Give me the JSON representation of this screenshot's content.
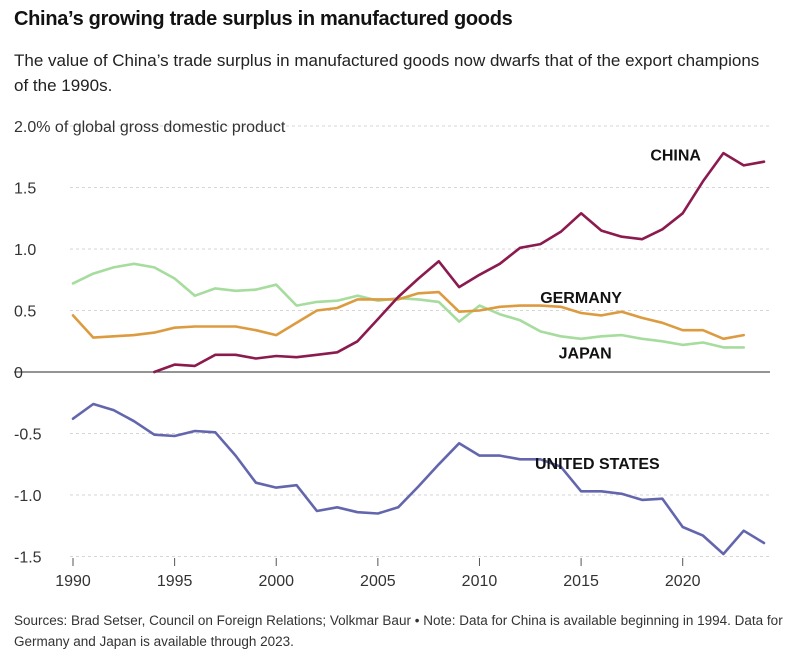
{
  "header": {
    "title": "China’s growing trade surplus in manufactured goods",
    "subtitle": "The value of China’s trade surplus in manufactured goods now dwarfs that of the export champions of the 1990s."
  },
  "footer": {
    "sources": "Sources: Brad Setser, Council on Foreign Relations; Volkmar Baur",
    "separator": "•",
    "note": "Note: Data for China is available beginning in 1994. Data for Germany and Japan is available through 2023."
  },
  "chart_data": {
    "type": "line",
    "title": "China’s growing trade surplus in manufactured goods",
    "ylabel_unit": "% of global gross domestic product",
    "xlim": [
      1990,
      2024
    ],
    "ylim": [
      -1.5,
      2.0
    ],
    "x_ticks": [
      1990,
      1995,
      2000,
      2005,
      2010,
      2015,
      2020
    ],
    "y_ticks": [
      {
        "value": 2.0,
        "label": "2.0"
      },
      {
        "value": 1.5,
        "label": "1.5"
      },
      {
        "value": 1.0,
        "label": "1.0"
      },
      {
        "value": 0.5,
        "label": "0.5"
      },
      {
        "value": 0,
        "label": "0"
      },
      {
        "value": -0.5,
        "label": "-0.5"
      },
      {
        "value": -1.0,
        "label": "-1.0"
      },
      {
        "value": -1.5,
        "label": "-1.5"
      }
    ],
    "grid": "horizontal dashed",
    "series": [
      {
        "name": "CHINA",
        "color": "#8b1a4f",
        "x": [
          1994,
          1995,
          1996,
          1997,
          1998,
          1999,
          2000,
          2001,
          2002,
          2003,
          2004,
          2005,
          2006,
          2007,
          2008,
          2009,
          2010,
          2011,
          2012,
          2013,
          2014,
          2015,
          2016,
          2017,
          2018,
          2019,
          2020,
          2021,
          2022,
          2023,
          2024
        ],
        "values": [
          0.0,
          0.06,
          0.05,
          0.14,
          0.14,
          0.11,
          0.13,
          0.12,
          0.14,
          0.16,
          0.25,
          0.43,
          0.61,
          0.76,
          0.9,
          0.69,
          0.79,
          0.88,
          1.01,
          1.04,
          1.14,
          1.29,
          1.15,
          1.1,
          1.08,
          1.16,
          1.29,
          1.55,
          1.78,
          1.68,
          1.71
        ]
      },
      {
        "name": "GERMANY",
        "color": "#dd9b40",
        "x": [
          1990,
          1991,
          1992,
          1993,
          1994,
          1995,
          1996,
          1997,
          1998,
          1999,
          2000,
          2001,
          2002,
          2003,
          2004,
          2005,
          2006,
          2007,
          2008,
          2009,
          2010,
          2011,
          2012,
          2013,
          2014,
          2015,
          2016,
          2017,
          2018,
          2019,
          2020,
          2021,
          2022,
          2023
        ],
        "values": [
          0.46,
          0.28,
          0.29,
          0.3,
          0.32,
          0.36,
          0.37,
          0.37,
          0.37,
          0.34,
          0.3,
          0.4,
          0.5,
          0.52,
          0.59,
          0.59,
          0.59,
          0.64,
          0.65,
          0.49,
          0.5,
          0.53,
          0.54,
          0.54,
          0.53,
          0.48,
          0.46,
          0.49,
          0.44,
          0.4,
          0.34,
          0.34,
          0.27,
          0.3
        ]
      },
      {
        "name": "JAPAN",
        "color": "#a6dc9d",
        "x": [
          1990,
          1991,
          1992,
          1993,
          1994,
          1995,
          1996,
          1997,
          1998,
          1999,
          2000,
          2001,
          2002,
          2003,
          2004,
          2005,
          2006,
          2007,
          2008,
          2009,
          2010,
          2011,
          2012,
          2013,
          2014,
          2015,
          2016,
          2017,
          2018,
          2019,
          2020,
          2021,
          2022,
          2023
        ],
        "values": [
          0.72,
          0.8,
          0.85,
          0.88,
          0.85,
          0.76,
          0.62,
          0.68,
          0.66,
          0.67,
          0.71,
          0.54,
          0.57,
          0.58,
          0.62,
          0.58,
          0.6,
          0.59,
          0.57,
          0.41,
          0.54,
          0.47,
          0.42,
          0.33,
          0.29,
          0.27,
          0.29,
          0.3,
          0.27,
          0.25,
          0.22,
          0.24,
          0.2,
          0.2
        ]
      },
      {
        "name": "UNITED STATES",
        "color": "#6366ad",
        "x": [
          1990,
          1991,
          1992,
          1993,
          1994,
          1995,
          1996,
          1997,
          1998,
          1999,
          2000,
          2001,
          2002,
          2003,
          2004,
          2005,
          2006,
          2007,
          2008,
          2009,
          2010,
          2011,
          2012,
          2013,
          2014,
          2015,
          2016,
          2017,
          2018,
          2019,
          2020,
          2021,
          2022,
          2023,
          2024
        ],
        "values": [
          -0.38,
          -0.26,
          -0.31,
          -0.4,
          -0.51,
          -0.52,
          -0.48,
          -0.49,
          -0.68,
          -0.9,
          -0.94,
          -0.92,
          -1.13,
          -1.1,
          -1.14,
          -1.15,
          -1.1,
          -0.93,
          -0.75,
          -0.58,
          -0.68,
          -0.68,
          -0.71,
          -0.71,
          -0.77,
          -0.97,
          -0.97,
          -0.99,
          -1.04,
          -1.03,
          -1.26,
          -1.33,
          -1.48,
          -1.29,
          -1.39
        ]
      }
    ],
    "annotations": [
      {
        "text": "CHINA",
        "series": "CHINA",
        "x": 2020.9,
        "y": 1.72,
        "anchor": "end"
      },
      {
        "text": "GERMANY",
        "series": "GERMANY",
        "x": 2015.0,
        "y": 0.56,
        "anchor": "middle"
      },
      {
        "text": "JAPAN",
        "series": "JAPAN",
        "x": 2015.2,
        "y": 0.11,
        "anchor": "middle"
      },
      {
        "text": "UNITED STATES",
        "series": "UNITED STATES",
        "x": 2015.8,
        "y": -0.79,
        "anchor": "middle"
      }
    ]
  }
}
